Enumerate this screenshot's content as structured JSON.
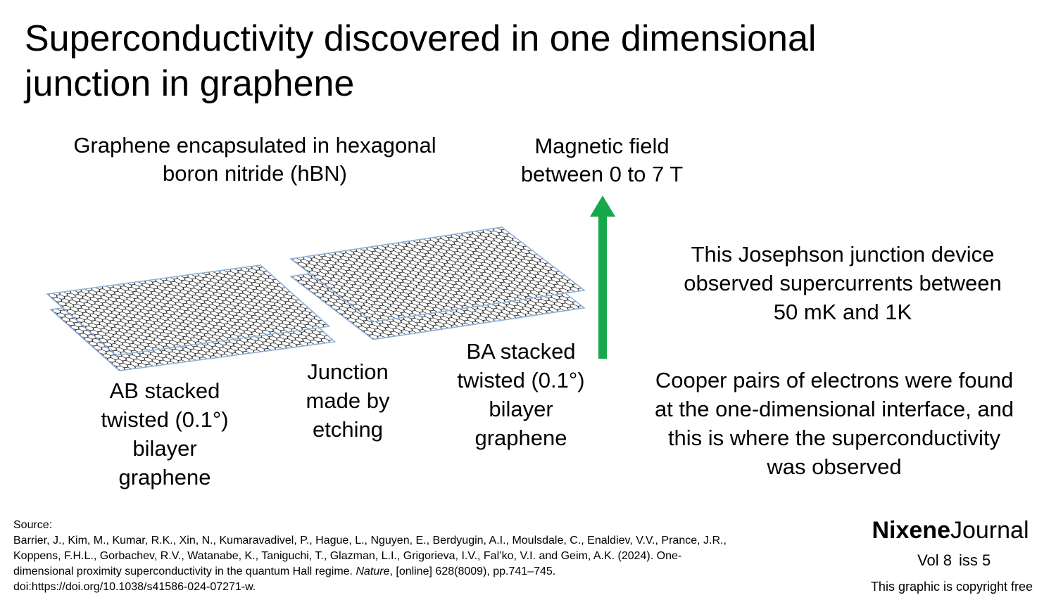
{
  "title": [
    "Superconductivity discovered in one dimensional",
    "junction in graphene"
  ],
  "labels": {
    "encapsulation": [
      "Graphene encapsulated in hexagonal",
      "boron nitride (hBN)"
    ],
    "magnetic_field": [
      "Magnetic field",
      "between 0 to 7 T"
    ],
    "device": [
      "This Josephson junction device",
      "observed supercurrents between",
      "50 mK and 1K"
    ],
    "ab_stack": [
      "AB stacked",
      "twisted (0.1°)",
      "bilayer",
      "graphene"
    ],
    "junction": [
      "Junction",
      "made by",
      "etching"
    ],
    "ba_stack": [
      "BA stacked",
      "twisted (0.1°)",
      "bilayer",
      "graphene"
    ],
    "cooper_pairs": [
      "Cooper pairs of electrons were found",
      "at the one-dimensional interface, and",
      "this is where the superconductivity",
      "was observed"
    ]
  },
  "source": {
    "heading": "Source:",
    "lines": [
      [
        "Barrier, J., Kim, M., Kumar, R.K., Xin, N., Kumaravadivel, P., Hague, L., Nguyen, E., Berdyugin, A.I., Moulsdale, C., Enaldiev, V.V., Prance, J.R.,"
      ],
      [
        "Koppens, F.H.L., Gorbachev, R.V., Watanabe, K., Taniguchi, T., Glazman, L.I., Grigorieva, I.V., Fal’ko, V.I. and Geim, A.K. (2024). One-"
      ],
      [
        "dimensional proximity superconductivity in the quantum Hall regime. ",
        "Nature",
        ", [online] 628(8009), pp.741–745."
      ],
      [
        "doi:https://doi.org/10.1038/s41586-024-07271-w."
      ]
    ]
  },
  "brand": {
    "name_bold": "Nixene",
    "name_light": "Journal",
    "volume": "Vol 8",
    "issue": "iss 5",
    "copyright": "This graphic is copyright free"
  }
}
